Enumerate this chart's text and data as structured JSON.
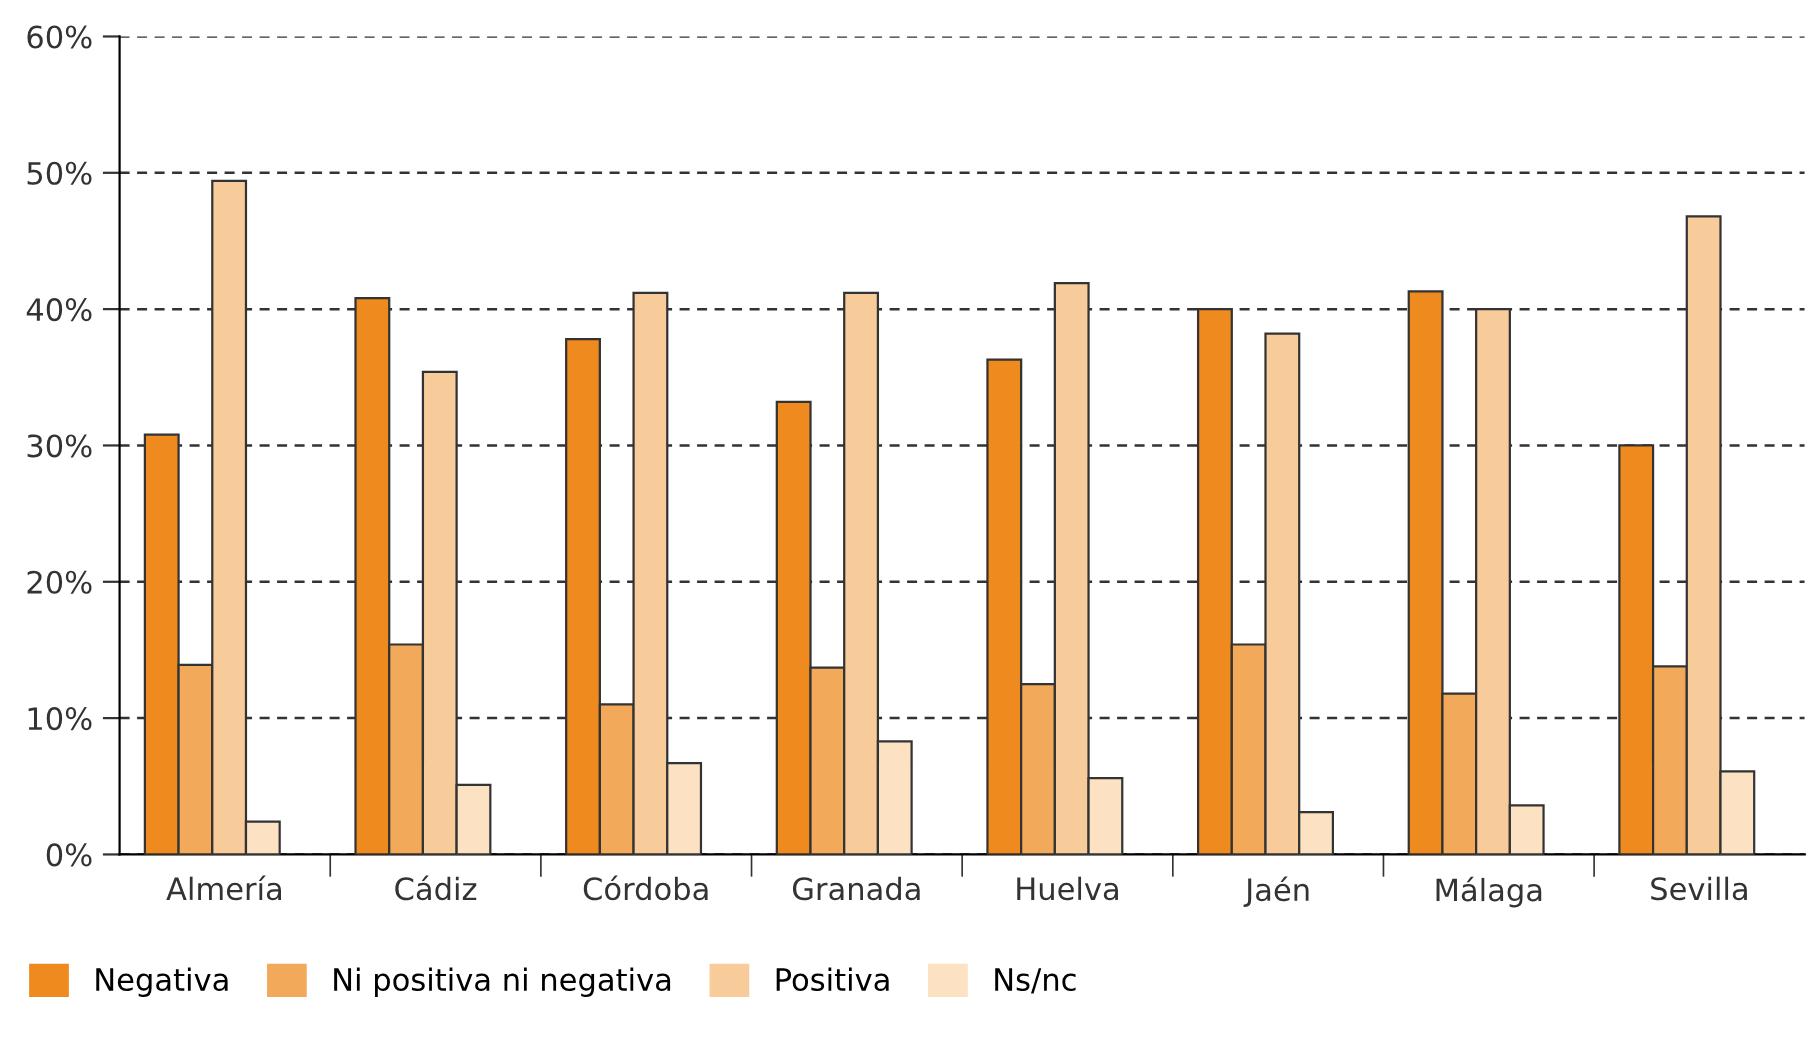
{
  "chart_data": {
    "type": "bar",
    "categories": [
      "Almería",
      "Cádiz",
      "Córdoba",
      "Granada",
      "Huelva",
      "Jaén",
      "Málaga",
      "Sevilla"
    ],
    "series": [
      {
        "name": "Negativa",
        "color": "#ee8a1e",
        "values": [
          30.8,
          40.8,
          37.8,
          33.2,
          36.3,
          40.0,
          41.3,
          30.0
        ]
      },
      {
        "name": "Ni positiva ni negativa",
        "color": "#f3a95a",
        "values": [
          13.9,
          15.4,
          11.0,
          13.7,
          12.5,
          15.4,
          11.8,
          13.8
        ]
      },
      {
        "name": "Positiva",
        "color": "#f8cb9a",
        "values": [
          49.4,
          35.4,
          41.2,
          41.2,
          41.9,
          38.2,
          40.0,
          46.8
        ]
      },
      {
        "name": "Ns/nc",
        "color": "#fce1c3",
        "values": [
          2.4,
          5.1,
          6.7,
          8.3,
          5.6,
          3.1,
          3.6,
          6.1
        ]
      }
    ],
    "ylim": [
      0,
      60
    ],
    "yticks": [
      {
        "value": 0,
        "label": "0%"
      },
      {
        "value": 10,
        "label": "10%"
      },
      {
        "value": 20,
        "label": "20%"
      },
      {
        "value": 30,
        "label": "30%"
      },
      {
        "value": 40,
        "label": "40%"
      },
      {
        "value": 50,
        "label": "50%"
      },
      {
        "value": 60,
        "label": "60%"
      }
    ],
    "grid": "y",
    "legend": "bottom left"
  }
}
